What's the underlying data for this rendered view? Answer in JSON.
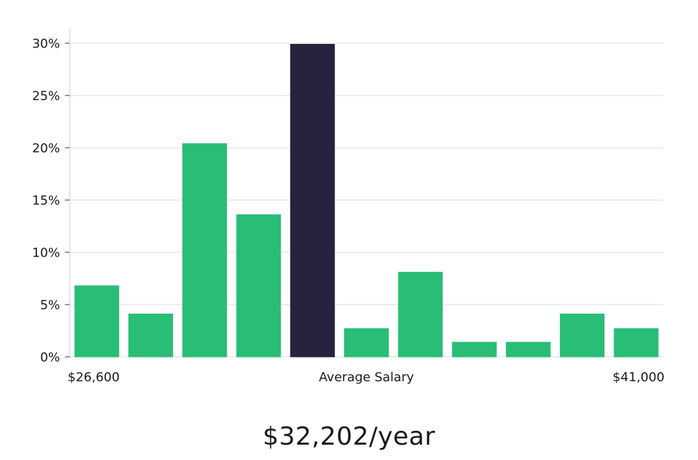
{
  "chart_data": {
    "type": "bar",
    "values": [
      6.8,
      4.1,
      20.4,
      13.6,
      29.9,
      2.7,
      8.1,
      1.4,
      1.4,
      4.1,
      2.7
    ],
    "highlight_index": 4,
    "ylim": [
      0,
      30
    ],
    "yticks": [
      0,
      5,
      10,
      15,
      20,
      25,
      30
    ],
    "ytick_labels": [
      "0%",
      "5%",
      "10%",
      "15%",
      "20%",
      "25%",
      "30%"
    ],
    "x_labels": {
      "left": "$26,600",
      "center": "Average Salary",
      "right": "$41,000"
    },
    "grid": true,
    "colors": {
      "bar": "#2abd76",
      "highlight": "#27233f",
      "grid": "#e2e2e2",
      "axis": "#cccccc"
    }
  },
  "salary": {
    "text": "$32,202/year"
  }
}
